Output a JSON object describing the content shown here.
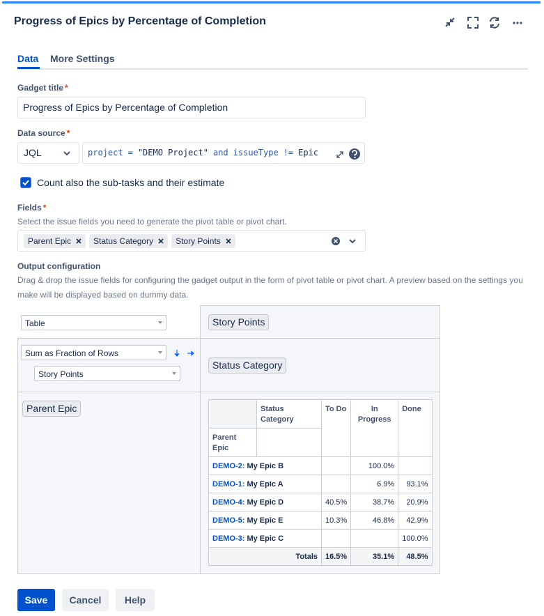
{
  "header": {
    "title": "Progress of Epics by Percentage of Completion"
  },
  "tabs": [
    "Data",
    "More Settings"
  ],
  "gadget_title": {
    "label": "Gadget title",
    "required": "*",
    "value": "Progress of Epics by Percentage of Completion"
  },
  "data_source": {
    "label": "Data source",
    "required": "*",
    "type": "JQL",
    "query": [
      "project",
      "=",
      "\"DEMO Project\"",
      "and",
      "issueType",
      "!=",
      "Epic"
    ]
  },
  "checkbox": {
    "label": "Count also the sub-tasks and their estimate",
    "checked": true
  },
  "fields": {
    "label": "Fields",
    "required": "*",
    "help": "Select the issue fields you need to generate the pivot table or pivot chart.",
    "selected": [
      "Parent Epic",
      "Status Category",
      "Story Points"
    ]
  },
  "output": {
    "label": "Output configuration",
    "help": "Drag & drop the issue fields for configuring the gadget output in the form of pivot table or pivot chart. A preview based on the settings you make will be displayed based on dummy data.",
    "view": "Table",
    "aggregation": "Sum as Fraction of Rows",
    "measure": "Story Points",
    "value_field": "Story Points",
    "column_field": "Status Category",
    "row_field": "Parent Epic"
  },
  "pivot_table": {
    "column_header": "Status Category",
    "row_header": "Parent Epic",
    "columns": [
      "To Do",
      "In Progress",
      "Done"
    ],
    "rows": [
      {
        "key": "DEMO-2:",
        "name": "My Epic B",
        "values": [
          null,
          "100.0%",
          null
        ]
      },
      {
        "key": "DEMO-1:",
        "name": "My Epic A",
        "values": [
          null,
          "6.9%",
          "93.1%"
        ]
      },
      {
        "key": "DEMO-4:",
        "name": "My Epic D",
        "values": [
          "40.5%",
          "38.7%",
          "20.9%"
        ]
      },
      {
        "key": "DEMO-5:",
        "name": "My Epic E",
        "values": [
          "10.3%",
          "46.8%",
          "42.9%"
        ]
      },
      {
        "key": "DEMO-3:",
        "name": "My Epic C",
        "values": [
          null,
          null,
          "100.0%"
        ]
      }
    ],
    "totals": {
      "label": "Totals",
      "values": [
        "16.5%",
        "35.1%",
        "48.5%"
      ]
    }
  },
  "buttons": [
    "Save",
    "Cancel",
    "Help"
  ]
}
